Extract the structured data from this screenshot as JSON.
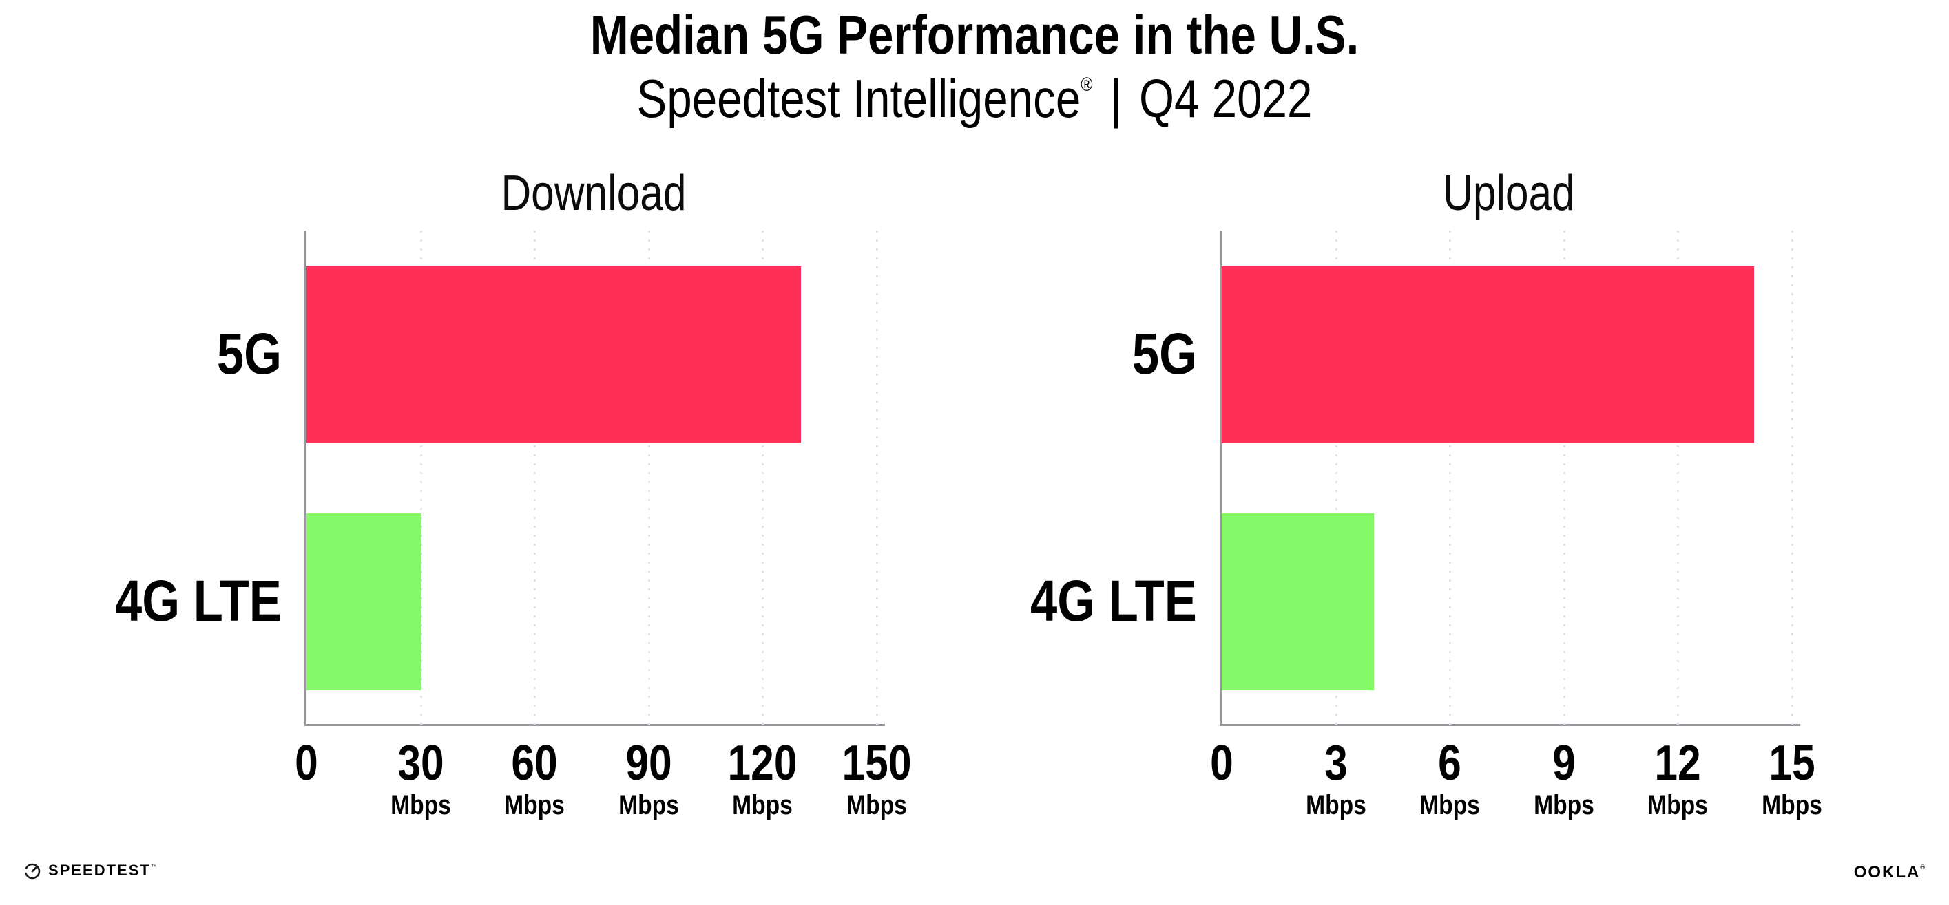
{
  "page": {
    "background": "#ffffff"
  },
  "header": {
    "title": "Median 5G Performance in the U.S.",
    "subtitle": {
      "brand": "Speedtest Intelligence",
      "registered_mark": "®",
      "separator": "|",
      "period": "Q4 2022"
    }
  },
  "chart_data": [
    {
      "type": "bar",
      "orientation": "horizontal",
      "title": "Download",
      "categories": [
        "5G",
        "4G LTE"
      ],
      "values": [
        130,
        30
      ],
      "unit": "Mbps",
      "xlabel": "",
      "ylabel": "",
      "xlim": [
        0,
        150
      ],
      "ticks": [
        0,
        30,
        60,
        90,
        120,
        150
      ],
      "grid": "dotted-vertical-gridlines",
      "legend": "none",
      "bar_colors": [
        "#FF2F57",
        "#85FA68"
      ]
    },
    {
      "type": "bar",
      "orientation": "horizontal",
      "title": "Upload",
      "categories": [
        "5G",
        "4G LTE"
      ],
      "values": [
        14,
        4
      ],
      "unit": "Mbps",
      "xlabel": "",
      "ylabel": "",
      "xlim": [
        0,
        15
      ],
      "ticks": [
        0,
        3,
        6,
        9,
        12,
        15
      ],
      "grid": "dotted-vertical-gridlines",
      "legend": "none",
      "bar_colors": [
        "#FF2F57",
        "#85FA68"
      ]
    }
  ],
  "footer": {
    "speedtest_label": "SPEEDTEST",
    "speedtest_trademark": "™",
    "ookla_label": "OOKLA",
    "ookla_registered": "®"
  },
  "colors": {
    "bar_5g": "#FF2F57",
    "bar_4g_lte": "#85FA68",
    "axis": "#97979C",
    "gridline": "#E2E2EC",
    "text": "#000000"
  }
}
